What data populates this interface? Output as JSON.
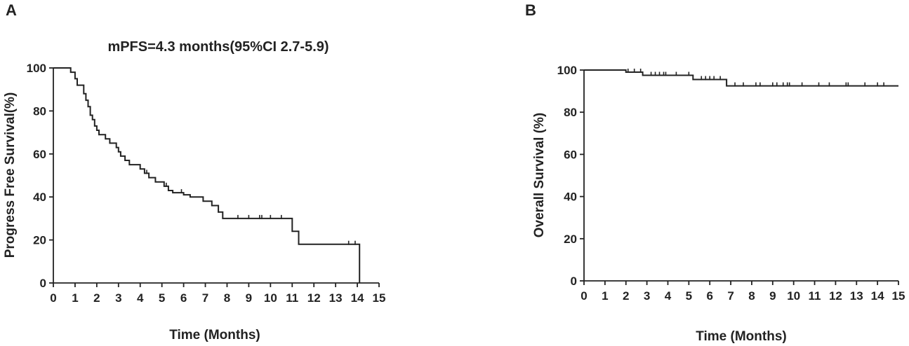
{
  "chart_data": [
    {
      "type": "line",
      "panel_label": "A",
      "title": "mPFS=4.3 months(95%CI 2.7-5.9)",
      "xlabel": "Time (Months)",
      "ylabel": "Progress Free Survival(%)",
      "xlim": [
        0,
        15
      ],
      "ylim": [
        0,
        100
      ],
      "xticks": [
        "0",
        "1",
        "2",
        "3",
        "4",
        "5",
        "6",
        "7",
        "8",
        "9",
        "10",
        "11",
        "12",
        "13",
        "14",
        "15"
      ],
      "yticks": [
        "0",
        "20",
        "40",
        "60",
        "80",
        "100"
      ],
      "grid": false,
      "series": [
        {
          "step": [
            [
              0,
              100
            ],
            [
              0.8,
              98
            ],
            [
              1.0,
              95
            ],
            [
              1.1,
              92
            ],
            [
              1.4,
              88
            ],
            [
              1.5,
              85
            ],
            [
              1.6,
              82
            ],
            [
              1.7,
              78
            ],
            [
              1.8,
              76
            ],
            [
              1.9,
              73
            ],
            [
              2.0,
              71
            ],
            [
              2.1,
              69
            ],
            [
              2.4,
              67
            ],
            [
              2.6,
              65
            ],
            [
              2.9,
              63
            ],
            [
              3.0,
              61
            ],
            [
              3.1,
              59
            ],
            [
              3.3,
              57
            ],
            [
              3.5,
              55
            ],
            [
              4.0,
              53
            ],
            [
              4.2,
              51
            ],
            [
              4.4,
              49
            ],
            [
              4.7,
              47
            ],
            [
              5.1,
              45
            ],
            [
              5.3,
              43
            ],
            [
              5.5,
              42
            ],
            [
              6.0,
              41
            ],
            [
              6.3,
              40
            ],
            [
              6.9,
              38
            ],
            [
              7.3,
              36
            ],
            [
              7.6,
              33
            ],
            [
              7.8,
              30
            ],
            [
              11.0,
              24
            ],
            [
              11.3,
              18
            ],
            [
              14.1,
              0
            ]
          ],
          "end": 14.1,
          "censored": [
            [
              4.3,
              51
            ],
            [
              5.2,
              45
            ],
            [
              5.9,
              42
            ],
            [
              7.6,
              33
            ],
            [
              8.5,
              30
            ],
            [
              9.0,
              30
            ],
            [
              9.5,
              30
            ],
            [
              9.6,
              30
            ],
            [
              10.0,
              30
            ],
            [
              10.5,
              30
            ],
            [
              13.6,
              18
            ],
            [
              13.9,
              18
            ]
          ]
        }
      ]
    },
    {
      "type": "line",
      "panel_label": "B",
      "title": "",
      "xlabel": "Time (Months)",
      "ylabel": "Overall Survival (%)",
      "xlim": [
        0,
        15
      ],
      "ylim": [
        0,
        100
      ],
      "xticks": [
        "0",
        "1",
        "2",
        "3",
        "4",
        "5",
        "6",
        "7",
        "8",
        "9",
        "10",
        "11",
        "12",
        "13",
        "14",
        "15"
      ],
      "yticks": [
        "0",
        "20",
        "40",
        "60",
        "80",
        "100"
      ],
      "grid": false,
      "series": [
        {
          "step": [
            [
              0,
              100
            ],
            [
              2.0,
              99
            ],
            [
              2.8,
              97.5
            ],
            [
              5.2,
              95.5
            ],
            [
              6.8,
              92.5
            ]
          ],
          "end": 15,
          "censored": [
            [
              2.1,
              99
            ],
            [
              2.4,
              99
            ],
            [
              2.7,
              99
            ],
            [
              3.2,
              97.5
            ],
            [
              3.4,
              97.5
            ],
            [
              3.6,
              97.5
            ],
            [
              3.8,
              97.5
            ],
            [
              3.9,
              97.5
            ],
            [
              4.4,
              97.5
            ],
            [
              5.0,
              97.5
            ],
            [
              5.6,
              95.5
            ],
            [
              5.8,
              95.5
            ],
            [
              6.0,
              95.5
            ],
            [
              6.2,
              95.5
            ],
            [
              6.5,
              95.5
            ],
            [
              7.2,
              92.5
            ],
            [
              7.6,
              92.5
            ],
            [
              8.2,
              92.5
            ],
            [
              8.4,
              92.5
            ],
            [
              9.0,
              92.5
            ],
            [
              9.2,
              92.5
            ],
            [
              9.5,
              92.5
            ],
            [
              9.7,
              92.5
            ],
            [
              9.8,
              92.5
            ],
            [
              10.4,
              92.5
            ],
            [
              11.2,
              92.5
            ],
            [
              11.7,
              92.5
            ],
            [
              12.5,
              92.5
            ],
            [
              12.6,
              92.5
            ],
            [
              13.4,
              92.5
            ],
            [
              14.0,
              92.5
            ],
            [
              14.3,
              92.5
            ]
          ]
        }
      ]
    }
  ]
}
